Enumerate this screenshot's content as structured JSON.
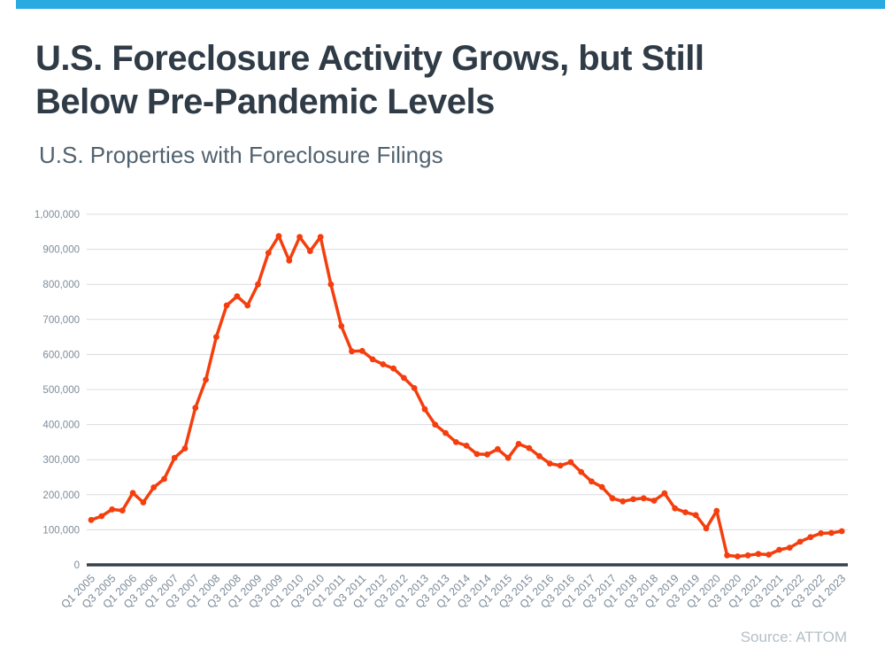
{
  "page": {
    "title_line1": "U.S. Foreclosure Activity Grows, but Still",
    "title_line2": "Below Pre-Pandemic Levels",
    "subtitle": "U.S. Properties with Foreclosure Filings",
    "source": "Source: ATTOM",
    "accent_color": "#29abe2",
    "title_color": "#2f3b46",
    "subtitle_color": "#51626f"
  },
  "chart_data": {
    "type": "line",
    "title": "U.S. Properties with Foreclosure Filings",
    "xlabel": "",
    "ylabel": "",
    "ylim": [
      0,
      1000000
    ],
    "ytick_step": 100000,
    "grid": true,
    "legend": "none",
    "line_color": "#f43e0e",
    "gridline_color": "#d9dcdf",
    "axis_line_color": "#38424b",
    "tick_label_color": "#7d8b99",
    "y_tick_labels": [
      "0",
      "100,000",
      "200,000",
      "300,000",
      "400,000",
      "500,000",
      "600,000",
      "700,000",
      "800,000",
      "900,000",
      "1,000,000"
    ],
    "x_tick_labels": [
      "Q1 2005",
      "Q3 2005",
      "Q1 2006",
      "Q3 2006",
      "Q1 2007",
      "Q3 2007",
      "Q1 2008",
      "Q3 2008",
      "Q1 2009",
      "Q3 2009",
      "Q1 2010",
      "Q3 2010",
      "Q1 2011",
      "Q3 2011",
      "Q1 2012",
      "Q3 2012",
      "Q1 2013",
      "Q3 2013",
      "Q1 2014",
      "Q3 2014",
      "Q1 2015",
      "Q3 2015",
      "Q1 2016",
      "Q3 2016",
      "Q1 2017",
      "Q3 2017",
      "Q1 2018",
      "Q3 2018",
      "Q1 2019",
      "Q3 2019",
      "Q1 2020",
      "Q3 2020",
      "Q1 2021",
      "Q3 2021",
      "Q1 2022",
      "Q3 2022",
      "Q1 2023"
    ],
    "categories": [
      "Q1 2005",
      "Q2 2005",
      "Q3 2005",
      "Q4 2005",
      "Q1 2006",
      "Q2 2006",
      "Q3 2006",
      "Q4 2006",
      "Q1 2007",
      "Q2 2007",
      "Q3 2007",
      "Q4 2007",
      "Q1 2008",
      "Q2 2008",
      "Q3 2008",
      "Q4 2008",
      "Q1 2009",
      "Q2 2009",
      "Q3 2009",
      "Q4 2009",
      "Q1 2010",
      "Q2 2010",
      "Q3 2010",
      "Q4 2010",
      "Q1 2011",
      "Q2 2011",
      "Q3 2011",
      "Q4 2011",
      "Q1 2012",
      "Q2 2012",
      "Q3 2012",
      "Q4 2012",
      "Q1 2013",
      "Q2 2013",
      "Q3 2013",
      "Q4 2013",
      "Q1 2014",
      "Q2 2014",
      "Q3 2014",
      "Q4 2014",
      "Q1 2015",
      "Q2 2015",
      "Q3 2015",
      "Q4 2015",
      "Q1 2016",
      "Q2 2016",
      "Q3 2016",
      "Q4 2016",
      "Q1 2017",
      "Q2 2017",
      "Q3 2017",
      "Q4 2017",
      "Q1 2018",
      "Q2 2018",
      "Q3 2018",
      "Q4 2018",
      "Q1 2019",
      "Q2 2019",
      "Q3 2019",
      "Q4 2019",
      "Q1 2020",
      "Q2 2020",
      "Q3 2020",
      "Q4 2020",
      "Q1 2021",
      "Q2 2021",
      "Q3 2021",
      "Q4 2021",
      "Q1 2022",
      "Q2 2022",
      "Q3 2022",
      "Q4 2022",
      "Q1 2023"
    ],
    "values": [
      128000,
      139000,
      158000,
      155000,
      205000,
      178000,
      221000,
      245000,
      305000,
      332000,
      448000,
      528000,
      650000,
      740000,
      766000,
      740000,
      800000,
      890000,
      938000,
      868000,
      935000,
      895000,
      935000,
      800000,
      681000,
      609000,
      610000,
      586000,
      572000,
      560000,
      533000,
      504000,
      444000,
      400000,
      376000,
      350000,
      340000,
      316000,
      315000,
      330000,
      305000,
      345000,
      333000,
      310000,
      289000,
      283000,
      293000,
      265000,
      238000,
      222000,
      190000,
      181000,
      187000,
      190000,
      183000,
      204000,
      161000,
      150000,
      142000,
      104000,
      154000,
      27000,
      24000,
      27000,
      31000,
      29000,
      43000,
      49000,
      66000,
      79000,
      90000,
      91000,
      96000
    ]
  }
}
